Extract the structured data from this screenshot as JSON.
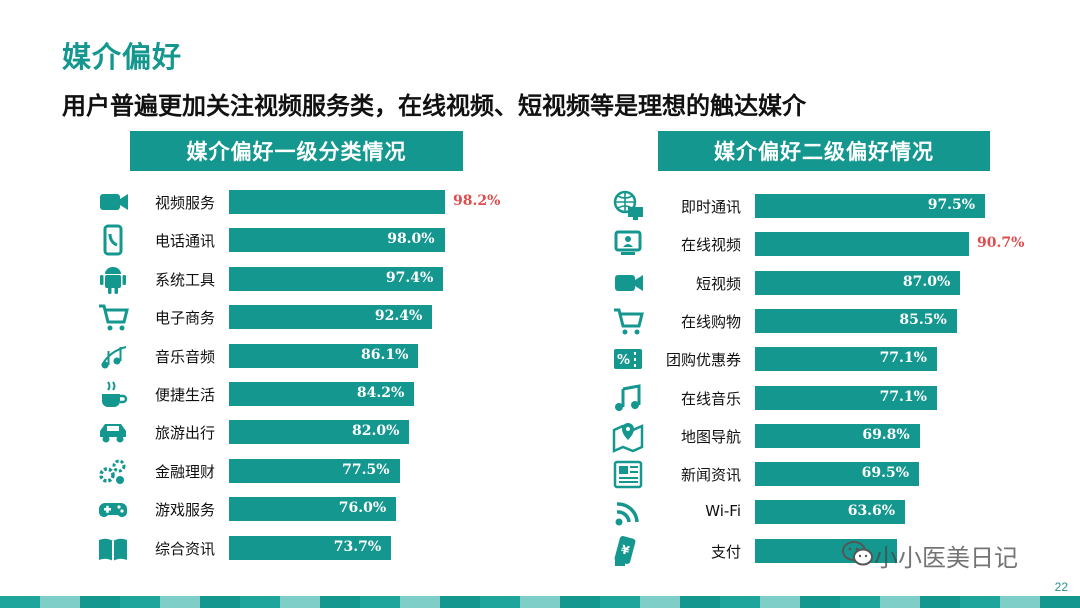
{
  "slide": {
    "title": "媒介偏好",
    "subtitle": "用户普遍更加关注视频服务类，在线视频、短视频等是理想的触达媒介",
    "page_number": "22",
    "watermark": "小小医美日记",
    "colors": {
      "teal": "#14978f",
      "highlight": "#e04b4b"
    }
  },
  "chart_data": [
    {
      "type": "bar",
      "orientation": "horizontal",
      "title": "媒介偏好一级分类情况",
      "categories": [
        "视频服务",
        "电话通讯",
        "系统工具",
        "电子商务",
        "音乐音频",
        "便捷生活",
        "旅游出行",
        "金融理财",
        "游戏服务",
        "综合资讯"
      ],
      "values": [
        98.2,
        98.0,
        97.4,
        92.4,
        86.1,
        84.2,
        82.0,
        77.5,
        76.0,
        73.7
      ],
      "labels": [
        "98.2%",
        "98.0%",
        "97.4%",
        "92.4%",
        "86.1%",
        "84.2%",
        "82.0%",
        "77.5%",
        "76.0%",
        "73.7%"
      ],
      "highlight_index": 0,
      "icons": [
        "video-camera-icon",
        "phone-icon",
        "android-icon",
        "shopping-cart-icon",
        "music-notes-icon",
        "coffee-cup-icon",
        "car-icon",
        "finance-gears-icon",
        "gamepad-icon",
        "book-icon"
      ]
    },
    {
      "type": "bar",
      "orientation": "horizontal",
      "title": "媒介偏好二级偏好情况",
      "categories": [
        "即时通讯",
        "在线视频",
        "短视频",
        "在线购物",
        "团购优惠券",
        "在线音乐",
        "地图导航",
        "新闻资讯",
        "Wi-Fi",
        "支付"
      ],
      "values": [
        97.5,
        90.7,
        87.0,
        85.5,
        77.1,
        77.1,
        69.8,
        69.5,
        63.6,
        60.0
      ],
      "labels": [
        "97.5%",
        "90.7%",
        "87.0%",
        "85.5%",
        "77.1%",
        "77.1%",
        "69.8%",
        "69.5%",
        "63.6%",
        ""
      ],
      "highlight_index": 1,
      "icons": [
        "globe-monitor-icon",
        "online-video-icon",
        "video-camera-icon",
        "shopping-cart-icon",
        "coupon-icon",
        "music-note-icon",
        "map-pin-icon",
        "newspaper-icon",
        "wifi-icon",
        "payment-icon"
      ]
    }
  ]
}
